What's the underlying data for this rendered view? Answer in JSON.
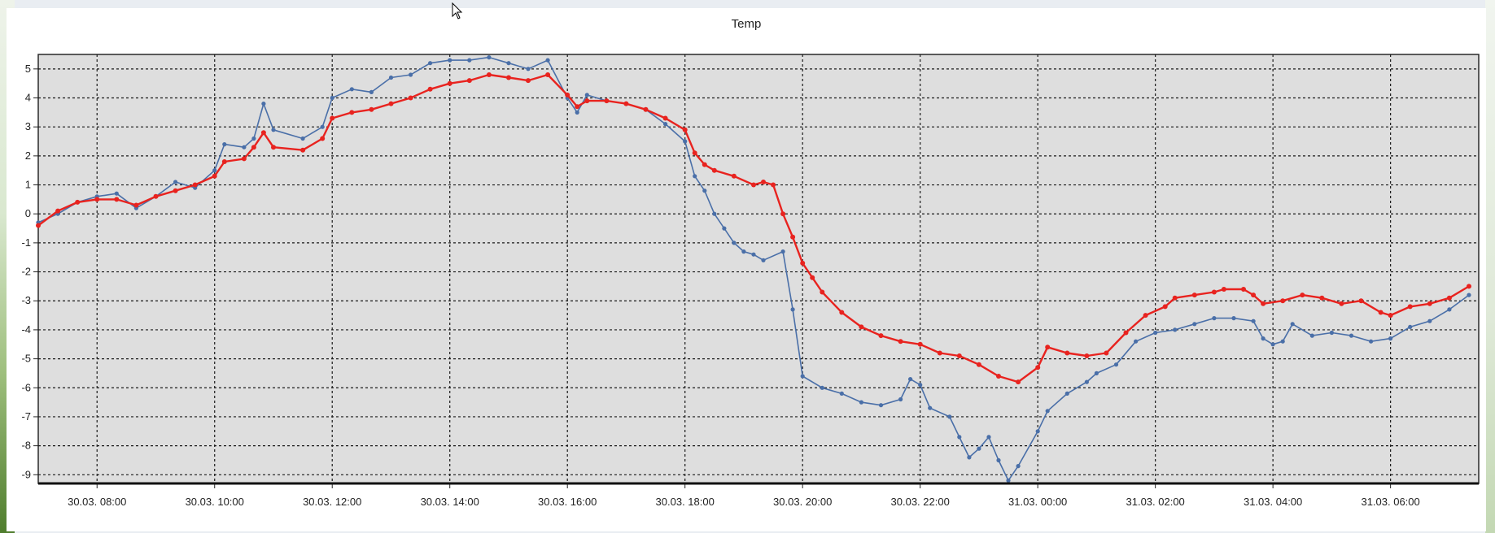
{
  "chart_data": {
    "type": "line",
    "title": "Temp",
    "xlabel": "",
    "ylabel": "",
    "x_tick_labels": [
      "30.03. 08:00",
      "30.03. 10:00",
      "30.03. 12:00",
      "30.03. 14:00",
      "30.03. 16:00",
      "30.03. 18:00",
      "30.03. 20:00",
      "30.03. 22:00",
      "31.03. 00:00",
      "31.03. 02:00",
      "31.03. 04:00",
      "31.03. 06:00"
    ],
    "y_tick_labels": [
      "5",
      "4",
      "3",
      "2",
      "1",
      "0",
      "-1",
      "-2",
      "-3",
      "-4",
      "-5",
      "-6",
      "-7",
      "-8",
      "-9"
    ],
    "xlim": [
      "30.03. 07:00",
      "31.03. 07:30"
    ],
    "ylim": [
      -9.3,
      5.5
    ],
    "grid": true,
    "series": [
      {
        "color": "#4a6fa8",
        "points": [
          [
            "30.03. 07:00",
            -0.3
          ],
          [
            "30.03. 07:20",
            0.0
          ],
          [
            "30.03. 07:40",
            0.4
          ],
          [
            "30.03. 08:00",
            0.6
          ],
          [
            "30.03. 08:20",
            0.7
          ],
          [
            "30.03. 08:40",
            0.2
          ],
          [
            "30.03. 09:00",
            0.6
          ],
          [
            "30.03. 09:20",
            1.1
          ],
          [
            "30.03. 09:40",
            0.9
          ],
          [
            "30.03. 10:00",
            1.5
          ],
          [
            "30.03. 10:10",
            2.4
          ],
          [
            "30.03. 10:30",
            2.3
          ],
          [
            "30.03. 10:40",
            2.6
          ],
          [
            "30.03. 10:50",
            3.8
          ],
          [
            "30.03. 11:00",
            2.9
          ],
          [
            "30.03. 11:30",
            2.6
          ],
          [
            "30.03. 11:50",
            3.0
          ],
          [
            "30.03. 12:00",
            4.0
          ],
          [
            "30.03. 12:20",
            4.3
          ],
          [
            "30.03. 12:40",
            4.2
          ],
          [
            "30.03. 13:00",
            4.7
          ],
          [
            "30.03. 13:20",
            4.8
          ],
          [
            "30.03. 13:40",
            5.2
          ],
          [
            "30.03. 14:00",
            5.3
          ],
          [
            "30.03. 14:20",
            5.3
          ],
          [
            "30.03. 14:40",
            5.4
          ],
          [
            "30.03. 15:00",
            5.2
          ],
          [
            "30.03. 15:20",
            5.0
          ],
          [
            "30.03. 15:40",
            5.3
          ],
          [
            "30.03. 16:00",
            4.0
          ],
          [
            "30.03. 16:10",
            3.5
          ],
          [
            "30.03. 16:20",
            4.1
          ],
          [
            "30.03. 16:40",
            3.9
          ],
          [
            "30.03. 17:00",
            3.8
          ],
          [
            "30.03. 17:20",
            3.6
          ],
          [
            "30.03. 17:40",
            3.1
          ],
          [
            "30.03. 18:00",
            2.5
          ],
          [
            "30.03. 18:10",
            1.3
          ],
          [
            "30.03. 18:20",
            0.8
          ],
          [
            "30.03. 18:30",
            0.0
          ],
          [
            "30.03. 18:40",
            -0.5
          ],
          [
            "30.03. 18:50",
            -1.0
          ],
          [
            "30.03. 19:00",
            -1.3
          ],
          [
            "30.03. 19:10",
            -1.4
          ],
          [
            "30.03. 19:20",
            -1.6
          ],
          [
            "30.03. 19:40",
            -1.3
          ],
          [
            "30.03. 19:50",
            -3.3
          ],
          [
            "30.03. 20:00",
            -5.6
          ],
          [
            "30.03. 20:20",
            -6.0
          ],
          [
            "30.03. 20:40",
            -6.2
          ],
          [
            "30.03. 21:00",
            -6.5
          ],
          [
            "30.03. 21:20",
            -6.6
          ],
          [
            "30.03. 21:40",
            -6.4
          ],
          [
            "30.03. 21:50",
            -5.7
          ],
          [
            "30.03. 22:00",
            -5.9
          ],
          [
            "30.03. 22:10",
            -6.7
          ],
          [
            "30.03. 22:30",
            -7.0
          ],
          [
            "30.03. 22:40",
            -7.7
          ],
          [
            "30.03. 22:50",
            -8.4
          ],
          [
            "30.03. 23:00",
            -8.1
          ],
          [
            "30.03. 23:10",
            -7.7
          ],
          [
            "30.03. 23:20",
            -8.5
          ],
          [
            "30.03. 23:30",
            -9.2
          ],
          [
            "30.03. 23:40",
            -8.7
          ],
          [
            "31.03. 00:00",
            -7.5
          ],
          [
            "31.03. 00:10",
            -6.8
          ],
          [
            "31.03. 00:30",
            -6.2
          ],
          [
            "31.03. 00:50",
            -5.8
          ],
          [
            "31.03. 01:00",
            -5.5
          ],
          [
            "31.03. 01:20",
            -5.2
          ],
          [
            "31.03. 01:40",
            -4.4
          ],
          [
            "31.03. 02:00",
            -4.1
          ],
          [
            "31.03. 02:20",
            -4.0
          ],
          [
            "31.03. 02:40",
            -3.8
          ],
          [
            "31.03. 03:00",
            -3.6
          ],
          [
            "31.03. 03:20",
            -3.6
          ],
          [
            "31.03. 03:40",
            -3.7
          ],
          [
            "31.03. 03:50",
            -4.3
          ],
          [
            "31.03. 04:00",
            -4.5
          ],
          [
            "31.03. 04:10",
            -4.4
          ],
          [
            "31.03. 04:20",
            -3.8
          ],
          [
            "31.03. 04:40",
            -4.2
          ],
          [
            "31.03. 05:00",
            -4.1
          ],
          [
            "31.03. 05:20",
            -4.2
          ],
          [
            "31.03. 05:40",
            -4.4
          ],
          [
            "31.03. 06:00",
            -4.3
          ],
          [
            "31.03. 06:20",
            -3.9
          ],
          [
            "31.03. 06:40",
            -3.7
          ],
          [
            "31.03. 07:00",
            -3.3
          ],
          [
            "31.03. 07:20",
            -2.8
          ]
        ]
      },
      {
        "color": "#e8231f",
        "points": [
          [
            "30.03. 07:00",
            -0.4
          ],
          [
            "30.03. 07:20",
            0.1
          ],
          [
            "30.03. 07:40",
            0.4
          ],
          [
            "30.03. 08:00",
            0.5
          ],
          [
            "30.03. 08:20",
            0.5
          ],
          [
            "30.03. 08:40",
            0.3
          ],
          [
            "30.03. 09:00",
            0.6
          ],
          [
            "30.03. 09:20",
            0.8
          ],
          [
            "30.03. 09:40",
            1.0
          ],
          [
            "30.03. 10:00",
            1.3
          ],
          [
            "30.03. 10:10",
            1.8
          ],
          [
            "30.03. 10:30",
            1.9
          ],
          [
            "30.03. 10:40",
            2.3
          ],
          [
            "30.03. 10:50",
            2.8
          ],
          [
            "30.03. 11:00",
            2.3
          ],
          [
            "30.03. 11:30",
            2.2
          ],
          [
            "30.03. 11:50",
            2.6
          ],
          [
            "30.03. 12:00",
            3.3
          ],
          [
            "30.03. 12:20",
            3.5
          ],
          [
            "30.03. 12:40",
            3.6
          ],
          [
            "30.03. 13:00",
            3.8
          ],
          [
            "30.03. 13:20",
            4.0
          ],
          [
            "30.03. 13:40",
            4.3
          ],
          [
            "30.03. 14:00",
            4.5
          ],
          [
            "30.03. 14:20",
            4.6
          ],
          [
            "30.03. 14:40",
            4.8
          ],
          [
            "30.03. 15:00",
            4.7
          ],
          [
            "30.03. 15:20",
            4.6
          ],
          [
            "30.03. 15:40",
            4.8
          ],
          [
            "30.03. 16:00",
            4.1
          ],
          [
            "30.03. 16:10",
            3.7
          ],
          [
            "30.03. 16:20",
            3.9
          ],
          [
            "30.03. 16:40",
            3.9
          ],
          [
            "30.03. 17:00",
            3.8
          ],
          [
            "30.03. 17:20",
            3.6
          ],
          [
            "30.03. 17:40",
            3.3
          ],
          [
            "30.03. 18:00",
            2.9
          ],
          [
            "30.03. 18:10",
            2.1
          ],
          [
            "30.03. 18:20",
            1.7
          ],
          [
            "30.03. 18:30",
            1.5
          ],
          [
            "30.03. 18:50",
            1.3
          ],
          [
            "30.03. 19:10",
            1.0
          ],
          [
            "30.03. 19:20",
            1.1
          ],
          [
            "30.03. 19:30",
            1.0
          ],
          [
            "30.03. 19:40",
            0.0
          ],
          [
            "30.03. 19:50",
            -0.8
          ],
          [
            "30.03. 20:00",
            -1.7
          ],
          [
            "30.03. 20:10",
            -2.2
          ],
          [
            "30.03. 20:20",
            -2.7
          ],
          [
            "30.03. 20:40",
            -3.4
          ],
          [
            "30.03. 21:00",
            -3.9
          ],
          [
            "30.03. 21:20",
            -4.2
          ],
          [
            "30.03. 21:40",
            -4.4
          ],
          [
            "30.03. 22:00",
            -4.5
          ],
          [
            "30.03. 22:20",
            -4.8
          ],
          [
            "30.03. 22:40",
            -4.9
          ],
          [
            "30.03. 23:00",
            -5.2
          ],
          [
            "30.03. 23:20",
            -5.6
          ],
          [
            "30.03. 23:40",
            -5.8
          ],
          [
            "31.03. 00:00",
            -5.3
          ],
          [
            "31.03. 00:10",
            -4.6
          ],
          [
            "31.03. 00:30",
            -4.8
          ],
          [
            "31.03. 00:50",
            -4.9
          ],
          [
            "31.03. 01:10",
            -4.8
          ],
          [
            "31.03. 01:30",
            -4.1
          ],
          [
            "31.03. 01:50",
            -3.5
          ],
          [
            "31.03. 02:10",
            -3.2
          ],
          [
            "31.03. 02:20",
            -2.9
          ],
          [
            "31.03. 02:40",
            -2.8
          ],
          [
            "31.03. 03:00",
            -2.7
          ],
          [
            "31.03. 03:10",
            -2.6
          ],
          [
            "31.03. 03:30",
            -2.6
          ],
          [
            "31.03. 03:40",
            -2.8
          ],
          [
            "31.03. 03:50",
            -3.1
          ],
          [
            "31.03. 04:10",
            -3.0
          ],
          [
            "31.03. 04:30",
            -2.8
          ],
          [
            "31.03. 04:50",
            -2.9
          ],
          [
            "31.03. 05:10",
            -3.1
          ],
          [
            "31.03. 05:30",
            -3.0
          ],
          [
            "31.03. 05:50",
            -3.4
          ],
          [
            "31.03. 06:00",
            -3.5
          ],
          [
            "31.03. 06:20",
            -3.2
          ],
          [
            "31.03. 06:40",
            -3.1
          ],
          [
            "31.03. 07:00",
            -2.9
          ],
          [
            "31.03. 07:20",
            -2.5
          ]
        ]
      }
    ]
  }
}
